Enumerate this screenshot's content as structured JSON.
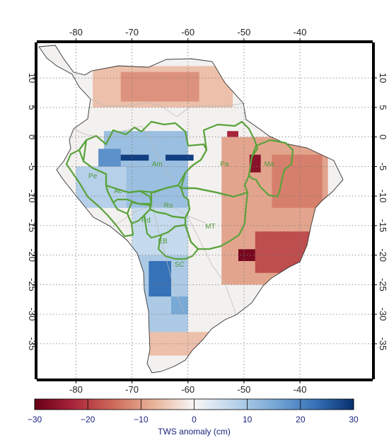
{
  "map": {
    "type": "gridded-anomaly-map",
    "lon_range": [
      -87,
      -27
    ],
    "lat_range": [
      -41,
      16
    ],
    "lon_ticks": [
      {
        "value": -80,
        "label": "-80"
      },
      {
        "value": -70,
        "label": "-70"
      },
      {
        "value": -60,
        "label": "-60"
      },
      {
        "value": -50,
        "label": "-50"
      },
      {
        "value": -40,
        "label": "-40"
      }
    ],
    "lat_ticks": [
      {
        "value": 10,
        "label": "10"
      },
      {
        "value": 5,
        "label": "5"
      },
      {
        "value": 0,
        "label": "0"
      },
      {
        "value": -5,
        "label": "-5"
      },
      {
        "value": -10,
        "label": "-10"
      },
      {
        "value": -15,
        "label": "-15"
      },
      {
        "value": -20,
        "label": "-20"
      },
      {
        "value": -25,
        "label": "-25"
      },
      {
        "value": -30,
        "label": "-30"
      },
      {
        "value": -35,
        "label": "-35"
      }
    ],
    "grid": true,
    "region_labels": [
      {
        "text": "Am",
        "lon": -65.5,
        "lat": -4.5
      },
      {
        "text": "Pa",
        "lon": -53.5,
        "lat": -4.5
      },
      {
        "text": "Ma",
        "lon": -45.5,
        "lat": -4.5
      },
      {
        "text": "Pe",
        "lon": -77,
        "lat": -6.5
      },
      {
        "text": "Ac",
        "lon": -72.5,
        "lat": -9
      },
      {
        "text": "Ro",
        "lon": -63.5,
        "lat": -11.5
      },
      {
        "text": "Rd",
        "lon": -67.5,
        "lat": -14
      },
      {
        "text": "MT",
        "lon": -56,
        "lat": -15
      },
      {
        "text": "EB",
        "lon": -64.5,
        "lat": -17.5
      },
      {
        "text": "SC",
        "lon": -61.5,
        "lat": -21.5
      }
    ],
    "boundary_color": "#5aa33c"
  },
  "colorbar": {
    "title": "TWS anomaly (cm)",
    "min": -30,
    "max": 30,
    "ticks": [
      {
        "value": -30,
        "label": "−30"
      },
      {
        "value": -20,
        "label": "−20"
      },
      {
        "value": -10,
        "label": "−10"
      },
      {
        "value": 0,
        "label": "0"
      },
      {
        "value": 10,
        "label": "10"
      },
      {
        "value": 20,
        "label": "20"
      },
      {
        "value": 30,
        "label": "30"
      }
    ],
    "colors": {
      "neg_extreme": "#670017",
      "neutral": "#f7f7f7",
      "pos_extreme": "#072e6e"
    }
  },
  "anomaly_zones": [
    {
      "lon": [
        -75,
        -60
      ],
      "lat": [
        -12,
        1
      ],
      "value": 11
    },
    {
      "lon": [
        -73,
        -67
      ],
      "lat": [
        -4,
        -3
      ],
      "value": 28
    },
    {
      "lon": [
        -64,
        -59
      ],
      "lat": [
        -4,
        -3
      ],
      "value": 28
    },
    {
      "lon": [
        -76,
        -72
      ],
      "lat": [
        -9,
        -2
      ],
      "value": 18
    },
    {
      "lon": [
        -70,
        -60
      ],
      "lat": [
        -20,
        -12
      ],
      "value": 6
    },
    {
      "lon": [
        -72,
        -60
      ],
      "lat": [
        -35,
        -20
      ],
      "value": 9
    },
    {
      "lon": [
        -67,
        -63
      ],
      "lat": [
        -27,
        -21
      ],
      "value": 22
    },
    {
      "lon": [
        -63,
        -60
      ],
      "lat": [
        -30,
        -27
      ],
      "value": 15
    },
    {
      "lon": [
        -80,
        -71
      ],
      "lat": [
        -12,
        -5
      ],
      "value": 8
    },
    {
      "lon": [
        -77,
        -52
      ],
      "lat": [
        5,
        12
      ],
      "value": -6
    },
    {
      "lon": [
        -72,
        -58
      ],
      "lat": [
        6,
        11
      ],
      "value": -11
    },
    {
      "lon": [
        -54,
        -35
      ],
      "lat": [
        -25,
        0
      ],
      "value": -9
    },
    {
      "lon": [
        -45,
        -36
      ],
      "lat": [
        -12,
        -3
      ],
      "value": -13
    },
    {
      "lon": [
        -48,
        -37
      ],
      "lat": [
        -23,
        -16
      ],
      "value": -18
    },
    {
      "lon": [
        -51,
        -48
      ],
      "lat": [
        -21,
        -19
      ],
      "value": -28
    },
    {
      "lon": [
        -49,
        -47
      ],
      "lat": [
        -6,
        -3
      ],
      "value": -26
    },
    {
      "lon": [
        -53,
        -51
      ],
      "lat": [
        0,
        1
      ],
      "value": -22
    },
    {
      "lon": [
        -70,
        -54
      ],
      "lat": [
        -37,
        -33
      ],
      "value": -6
    }
  ]
}
